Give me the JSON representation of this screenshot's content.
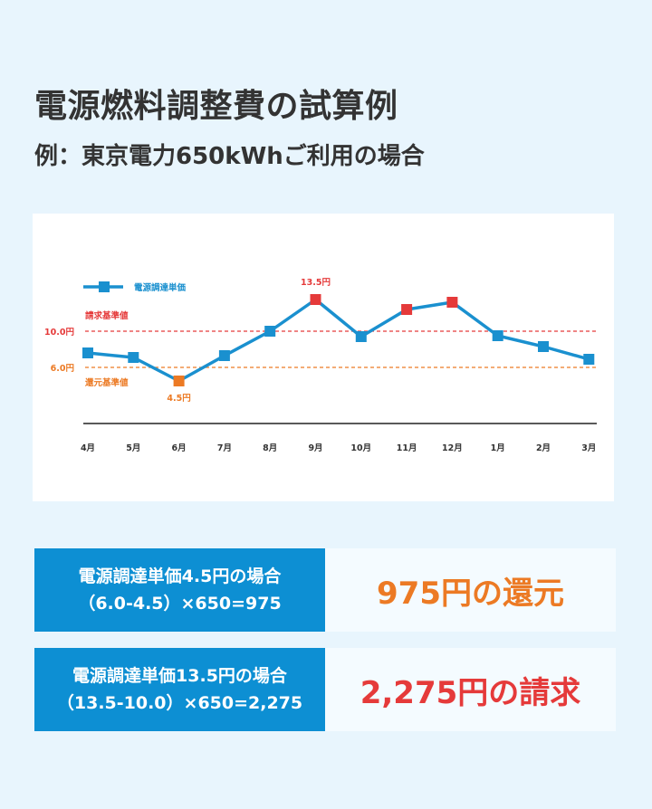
{
  "header": {
    "title": "電源燃料調整費の試算例",
    "subtitle": "例：東京電力650kWhご利用の場合"
  },
  "colors": {
    "line": "#1a90cf",
    "refund": "#ec7a24",
    "charge": "#e53a3a",
    "panel_blue": "#0d8fd3"
  },
  "chart_data": {
    "type": "line",
    "categories": [
      "4月",
      "5月",
      "6月",
      "7月",
      "8月",
      "9月",
      "10月",
      "11月",
      "12月",
      "1月",
      "2月",
      "3月"
    ],
    "series": [
      {
        "name": "電源調達単価",
        "values": [
          7.6,
          7.1,
          4.5,
          7.3,
          10.0,
          13.5,
          9.4,
          12.4,
          13.2,
          9.5,
          8.3,
          6.9
        ]
      }
    ],
    "ylim": [
      0,
      16
    ],
    "reference_lines": [
      {
        "label": "請求基準値",
        "value": 10.0,
        "value_label": "10.0円",
        "color": "#e53a3a"
      },
      {
        "label": "還元基準値",
        "value": 6.0,
        "value_label": "6.0円",
        "color": "#ec7a24"
      }
    ],
    "point_highlights": [
      {
        "index": 2,
        "color": "#ec7a24",
        "label": "4.5円"
      },
      {
        "index": 5,
        "color": "#e53a3a",
        "label": "13.5円"
      },
      {
        "index": 7,
        "color": "#e53a3a"
      },
      {
        "index": 8,
        "color": "#e53a3a"
      }
    ],
    "legend": "top-left",
    "grid": false
  },
  "rows": [
    {
      "line1": "電源調達単価4.5円の場合",
      "line2": "（6.0-4.5）×650=975",
      "result": "975円の還元"
    },
    {
      "line1": "電源調達単価13.5円の場合",
      "line2": "（13.5-10.0）×650=2,275",
      "result": "2,275円の請求"
    }
  ]
}
